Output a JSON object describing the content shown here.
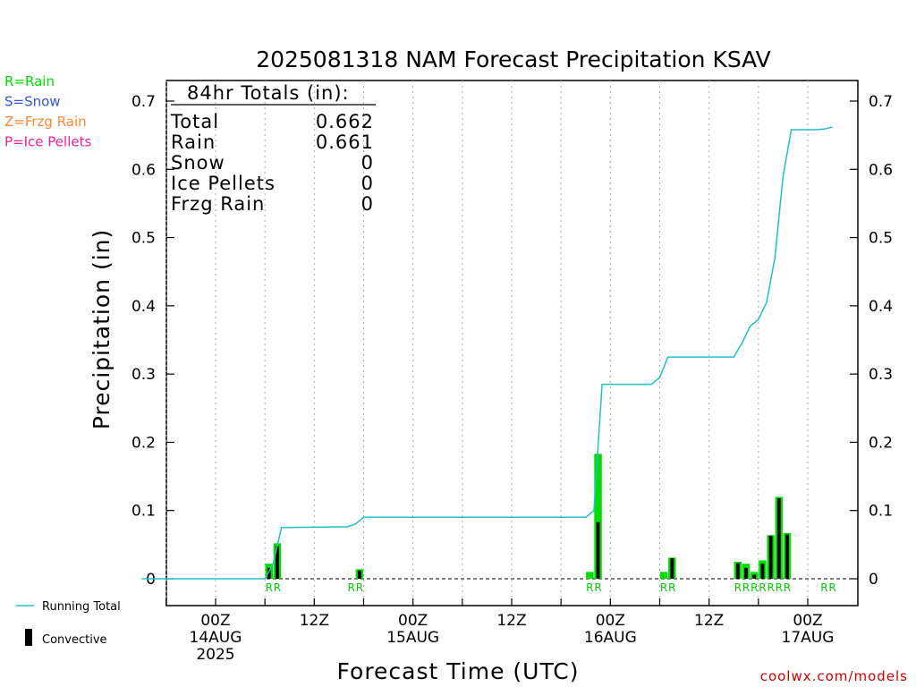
{
  "chart_data": {
    "type": "bar",
    "title": "2025081318 NAM Forecast Precipitation KSAV",
    "xlabel": "Forecast Time (UTC)",
    "ylabel": "Precipitation (in)",
    "ylim": [
      0,
      0.7
    ],
    "yticks": [
      "0",
      "0.1",
      "0.2",
      "0.3",
      "0.4",
      "0.5",
      "0.6",
      "0.7"
    ],
    "x_range_hours": [
      -9,
      75
    ],
    "grid": "vertical dotted at 6-hour intervals",
    "xticks": [
      {
        "hour": 0,
        "lines": [
          "00Z",
          "14AUG",
          "2025"
        ]
      },
      {
        "hour": 12,
        "lines": [
          "12Z"
        ]
      },
      {
        "hour": 24,
        "lines": [
          "00Z",
          "15AUG"
        ]
      },
      {
        "hour": 36,
        "lines": [
          "12Z"
        ]
      },
      {
        "hour": 48,
        "lines": [
          "00Z",
          "16AUG"
        ]
      },
      {
        "hour": 60,
        "lines": [
          "12Z"
        ]
      },
      {
        "hour": 72,
        "lines": [
          "00Z",
          "17AUG"
        ]
      }
    ],
    "precip_type_legend": [
      {
        "label": "R=Rain",
        "color": "#00dd00"
      },
      {
        "label": "S=Snow",
        "color": "#3355dd"
      },
      {
        "label": "Z=Frzg Rain",
        "color": "#ff8833"
      },
      {
        "label": "P=Ice Pellets",
        "color": "#ee2299"
      }
    ],
    "series_legend": {
      "running_total": "Running Total",
      "convective": "Convective"
    },
    "colors": {
      "running_total": "#22c0c8",
      "rain": "#00dd00",
      "convective": "#000000",
      "grid": "#aaaaaa"
    },
    "totals_box": {
      "header": "84hr Totals (in):",
      "rows": [
        {
          "label": "Total",
          "value": "0.662"
        },
        {
          "label": "Rain",
          "value": "0.661"
        },
        {
          "label": "Snow",
          "value": "0"
        },
        {
          "label": "Ice Pellets",
          "value": "0"
        },
        {
          "label": "Frzg Rain",
          "value": "0"
        }
      ]
    },
    "bars": [
      {
        "hour": 6.5,
        "total": 0.022,
        "convective": 0.016
      },
      {
        "hour": 7.5,
        "total": 0.052,
        "convective": 0.048
      },
      {
        "hour": 17.5,
        "total": 0.014,
        "convective": 0.012
      },
      {
        "hour": 45.5,
        "total": 0.01,
        "convective": 0.0
      },
      {
        "hour": 46.5,
        "total": 0.183,
        "convective": 0.083
      },
      {
        "hour": 54.5,
        "total": 0.01,
        "convective": 0.0
      },
      {
        "hour": 55.5,
        "total": 0.031,
        "convective": 0.03
      },
      {
        "hour": 63.5,
        "total": 0.025,
        "convective": 0.023
      },
      {
        "hour": 64.5,
        "total": 0.022,
        "convective": 0.016
      },
      {
        "hour": 65.5,
        "total": 0.01,
        "convective": 0.006
      },
      {
        "hour": 66.5,
        "total": 0.027,
        "convective": 0.022
      },
      {
        "hour": 67.5,
        "total": 0.064,
        "convective": 0.063
      },
      {
        "hour": 68.5,
        "total": 0.12,
        "convective": 0.118
      },
      {
        "hour": 69.5,
        "total": 0.067,
        "convective": 0.065
      }
    ],
    "running_total": {
      "x": [
        -9,
        6,
        7,
        8,
        15,
        16,
        17,
        18,
        45,
        46,
        47,
        53,
        54,
        55,
        63,
        64,
        65,
        66,
        67,
        68,
        69,
        70,
        71,
        72,
        73,
        74,
        75
      ],
      "y": [
        0,
        0,
        0.022,
        0.075,
        0.076,
        0.076,
        0.08,
        0.09,
        0.09,
        0.1,
        0.285,
        0.285,
        0.295,
        0.325,
        0.325,
        0.345,
        0.37,
        0.38,
        0.405,
        0.47,
        0.59,
        0.658,
        0.658,
        0.658,
        0.658,
        0.659,
        0.662
      ]
    },
    "type_labels": [
      {
        "hour": 6.5,
        "text": "R"
      },
      {
        "hour": 7.5,
        "text": "R"
      },
      {
        "hour": 16.5,
        "text": "R"
      },
      {
        "hour": 17.5,
        "text": "R"
      },
      {
        "hour": 45.5,
        "text": "R"
      },
      {
        "hour": 46.5,
        "text": "R"
      },
      {
        "hour": 54.5,
        "text": "R"
      },
      {
        "hour": 55.5,
        "text": "R"
      },
      {
        "hour": 63.5,
        "text": "R"
      },
      {
        "hour": 64.5,
        "text": "R"
      },
      {
        "hour": 65.5,
        "text": "R"
      },
      {
        "hour": 66.5,
        "text": "R"
      },
      {
        "hour": 67.5,
        "text": "R"
      },
      {
        "hour": 68.5,
        "text": "R"
      },
      {
        "hour": 69.5,
        "text": "R"
      },
      {
        "hour": 74.0,
        "text": "R"
      },
      {
        "hour": 75.0,
        "text": "R"
      }
    ],
    "credit": "coolwx.com/models"
  }
}
